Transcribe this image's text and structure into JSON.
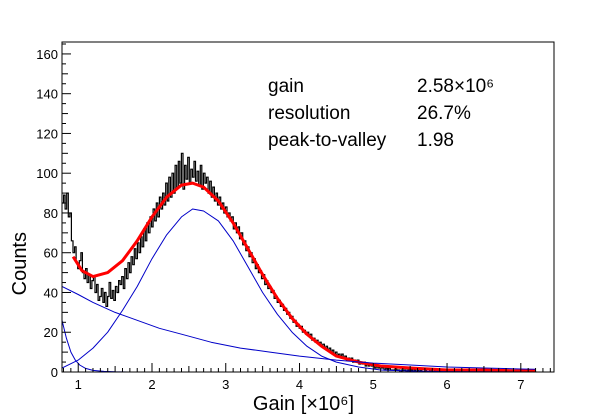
{
  "chart_data": {
    "type": "line",
    "title": "",
    "xlabel": "Gain [×10⁶]",
    "ylabel": "Counts",
    "xlim": [
      0.78,
      7.45
    ],
    "ylim": [
      0,
      166
    ],
    "x_ticks": [
      1,
      2,
      3,
      4,
      5,
      6,
      7
    ],
    "y_ticks": [
      0,
      20,
      40,
      60,
      80,
      100,
      120,
      140,
      160
    ],
    "grid": false,
    "legend": "none",
    "annotations": [
      {
        "label": "gain",
        "value": "2.58×10⁶"
      },
      {
        "label": "resolution",
        "value": "26.7%"
      },
      {
        "label": "peak-to-valley",
        "value": "1.98"
      }
    ],
    "series": [
      {
        "style": "histogram",
        "color": "#000000",
        "binning": {
          "x_start": 0.78,
          "bin_width": 0.0213
        },
        "values": [
          85,
          89,
          82,
          90,
          78,
          80,
          66,
          60,
          63,
          55,
          52,
          56,
          60,
          50,
          47,
          52,
          45,
          49,
          42,
          46,
          48,
          40,
          44,
          36,
          38,
          42,
          35,
          40,
          33,
          38,
          45,
          37,
          41,
          36,
          43,
          40,
          46,
          44,
          48,
          42,
          52,
          47,
          55,
          50,
          58,
          54,
          62,
          57,
          65,
          60,
          68,
          63,
          72,
          66,
          75,
          70,
          78,
          73,
          82,
          76,
          85,
          78,
          88,
          82,
          90,
          84,
          95,
          86,
          98,
          88,
          100,
          90,
          104,
          93,
          106,
          95,
          110,
          92,
          104,
          97,
          108,
          95,
          102,
          98,
          106,
          96,
          101,
          94,
          104,
          92,
          100,
          95,
          98,
          90,
          96,
          88,
          93,
          86,
          90,
          84,
          88,
          82,
          85,
          80,
          83,
          78,
          80,
          76,
          78,
          72,
          75,
          70,
          73,
          67,
          70,
          64,
          66,
          61,
          63,
          58,
          60,
          55,
          57,
          52,
          54,
          50,
          51,
          47,
          49,
          44,
          46,
          42,
          43,
          40,
          41,
          37,
          38,
          35,
          36,
          33,
          34,
          31,
          32,
          29,
          30,
          27,
          28,
          25,
          26,
          23,
          24,
          22,
          23,
          20,
          21,
          19,
          20,
          18,
          19,
          16,
          17,
          15,
          16,
          14,
          15,
          13,
          14,
          12,
          13,
          11,
          12,
          10,
          11,
          9,
          10,
          8,
          9,
          8,
          9,
          7,
          8,
          6,
          7,
          6,
          7,
          5,
          6,
          5,
          6,
          4,
          5,
          4,
          5,
          3,
          4,
          3,
          4,
          3,
          3,
          2,
          3,
          2,
          3,
          2,
          2,
          1,
          2,
          1,
          2,
          1,
          1,
          1,
          2,
          1,
          1,
          0,
          1,
          1,
          1,
          0,
          1,
          0,
          1,
          0,
          1,
          0,
          1,
          0,
          1,
          0,
          0,
          1,
          0,
          0,
          1,
          0,
          0,
          1,
          0,
          0,
          1,
          0,
          0,
          0,
          1,
          0,
          0,
          0,
          1,
          0,
          0,
          0,
          0,
          1,
          0,
          0,
          0,
          0,
          1,
          0,
          0,
          0,
          0,
          0,
          1,
          0,
          0,
          0,
          0,
          0,
          0,
          1,
          0,
          0,
          0,
          0,
          0,
          0,
          0,
          1,
          0,
          0,
          0,
          0,
          0,
          0,
          0,
          0,
          0,
          1,
          0,
          0,
          0,
          0,
          0,
          0,
          0,
          0,
          0,
          0,
          0,
          0
        ]
      },
      {
        "style": "fit-total",
        "color": "#ff0000",
        "x": [
          0.93,
          1.05,
          1.2,
          1.4,
          1.6,
          1.8,
          2.0,
          2.2,
          2.4,
          2.55,
          2.7,
          2.9,
          3.1,
          3.3,
          3.5,
          3.7,
          3.9,
          4.1,
          4.3,
          4.5,
          4.8,
          5.1,
          5.5,
          6.0,
          6.5,
          7.0,
          7.2
        ],
        "values": [
          58,
          51,
          48,
          50,
          56,
          66,
          78,
          88,
          94,
          95,
          93,
          86,
          75,
          62,
          49,
          37,
          27,
          19,
          13,
          8,
          5,
          3,
          2,
          1,
          1,
          0.5,
          0.5
        ]
      },
      {
        "style": "fit-gaussian",
        "color": "#0000c8",
        "x": [
          0.78,
          1.0,
          1.2,
          1.4,
          1.6,
          1.8,
          2.0,
          2.2,
          2.4,
          2.55,
          2.7,
          2.9,
          3.1,
          3.3,
          3.5,
          3.7,
          3.9,
          4.1,
          4.3,
          4.5,
          4.8,
          5.1,
          5.5,
          6.0,
          6.5,
          7.2
        ],
        "values": [
          2,
          6,
          12,
          20,
          31,
          43,
          57,
          69,
          78,
          82,
          81,
          76,
          66,
          53,
          40,
          29,
          20,
          13,
          8,
          5,
          2.5,
          1,
          0.5,
          0.2,
          0.1,
          0
        ]
      },
      {
        "style": "fit-background",
        "color": "#0000c8",
        "x": [
          0.78,
          1.0,
          1.2,
          1.5,
          1.8,
          2.1,
          2.4,
          2.8,
          3.2,
          3.6,
          4.0,
          4.5,
          5.0,
          5.5,
          6.0,
          6.5,
          7.0,
          7.2
        ],
        "values": [
          43,
          39,
          35,
          30,
          26,
          22,
          19,
          15,
          12,
          10,
          8,
          6,
          4.5,
          3.5,
          2.5,
          2,
          1.5,
          1.4
        ]
      },
      {
        "style": "fit-exponential",
        "color": "#0000c8",
        "x": [
          0.78,
          0.84,
          0.9,
          0.96,
          1.02,
          1.1,
          1.2,
          1.35,
          1.5,
          1.7
        ],
        "values": [
          26,
          17,
          10,
          6,
          3.5,
          1.8,
          0.8,
          0.3,
          0.1,
          0
        ]
      }
    ]
  }
}
